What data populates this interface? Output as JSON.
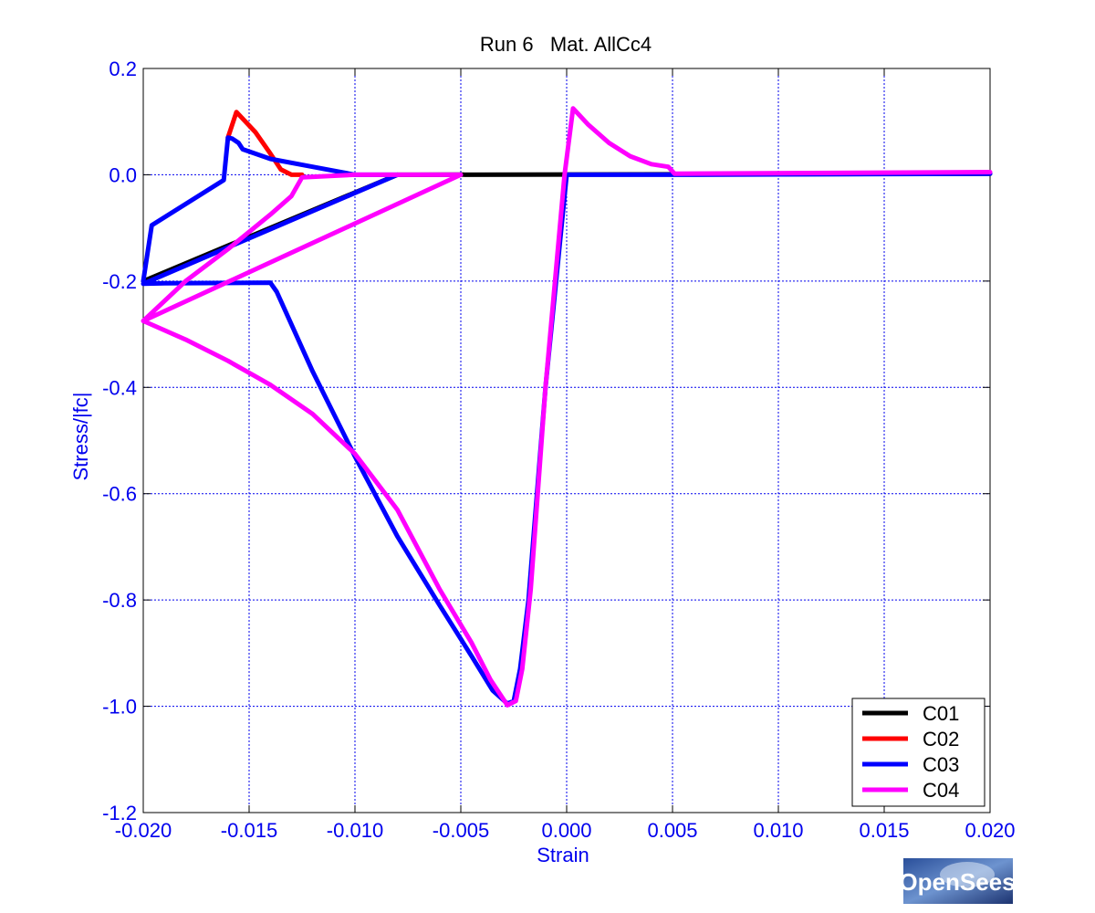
{
  "chart_data": {
    "type": "line",
    "title": "Run 6   Mat. AllCc4",
    "xlabel": "Strain",
    "ylabel": "Stress/|fc|",
    "xlim": [
      -0.02,
      0.02
    ],
    "ylim": [
      -1.2,
      0.2
    ],
    "xticks": [
      -0.02,
      -0.015,
      -0.01,
      -0.005,
      0.0,
      0.005,
      0.01,
      0.015,
      0.02
    ],
    "xtick_labels": [
      "-0.020",
      "-0.015",
      "-0.010",
      "-0.005",
      "0.000",
      "0.005",
      "0.010",
      "0.015",
      "0.020"
    ],
    "yticks": [
      0.2,
      0.0,
      -0.2,
      -0.4,
      -0.6,
      -0.8,
      -1.0,
      -1.2
    ],
    "ytick_labels": [
      "0.2",
      "0.0",
      "-0.2",
      "-0.4",
      "-0.6",
      "-0.8",
      "-1.0",
      "-1.2"
    ],
    "grid": true,
    "legend_position": "bottom-right",
    "series": [
      {
        "name": "C01",
        "color": "#000000",
        "x": [
          -0.02,
          -0.008,
          -0.007,
          0.02
        ],
        "y": [
          -0.2,
          0.0,
          0.0,
          0.002
        ]
      },
      {
        "name": "C02",
        "color": "#ff0000",
        "x": [
          -0.016,
          -0.0156,
          -0.0147,
          -0.014,
          -0.0135,
          -0.013,
          -0.0125
        ],
        "y": [
          0.07,
          0.118,
          0.08,
          0.04,
          0.01,
          0.0,
          0.0
        ]
      },
      {
        "name": "C03",
        "color": "#0000ff",
        "x": [
          -0.02,
          -0.0196,
          -0.0162,
          -0.016,
          -0.0158,
          -0.0155,
          -0.0153,
          -0.014,
          -0.012,
          -0.01,
          -0.008,
          -0.02,
          -0.019,
          -0.014,
          -0.0137,
          -0.012,
          -0.01,
          -0.008,
          -0.006,
          -0.0045,
          -0.0035,
          -0.0028,
          -0.0025,
          -0.0022,
          -0.0018,
          -0.001,
          0.0,
          0.005,
          0.02
        ],
        "y": [
          -0.2,
          -0.095,
          -0.01,
          0.07,
          0.068,
          0.06,
          0.048,
          0.03,
          0.015,
          0.0,
          0.0,
          -0.205,
          -0.204,
          -0.203,
          -0.22,
          -0.37,
          -0.53,
          -0.68,
          -0.81,
          -0.905,
          -0.97,
          -0.995,
          -0.99,
          -0.93,
          -0.8,
          -0.4,
          0.0,
          0.0,
          0.002
        ]
      },
      {
        "name": "C04",
        "color": "#ff00ff",
        "x": [
          -0.02,
          -0.018,
          -0.016,
          -0.014,
          -0.013,
          -0.0125,
          -0.01,
          -0.008,
          -0.005,
          -0.02,
          -0.018,
          -0.016,
          -0.014,
          -0.012,
          -0.01,
          -0.008,
          -0.006,
          -0.0045,
          -0.0036,
          -0.0028,
          -0.0024,
          -0.0021,
          -0.0017,
          -0.001,
          -0.0001,
          0.0003,
          0.001,
          0.002,
          0.003,
          0.004,
          0.0048,
          0.0051,
          0.02
        ],
        "y": [
          -0.275,
          -0.2,
          -0.14,
          -0.075,
          -0.04,
          -0.005,
          0.0,
          0.0,
          0.0,
          -0.275,
          -0.31,
          -0.35,
          -0.395,
          -0.45,
          -0.525,
          -0.63,
          -0.78,
          -0.88,
          -0.95,
          -0.998,
          -0.99,
          -0.93,
          -0.78,
          -0.4,
          0.0,
          0.125,
          0.095,
          0.06,
          0.035,
          0.02,
          0.015,
          0.002,
          0.005
        ]
      }
    ]
  },
  "logo": {
    "text": "OpenSees"
  }
}
